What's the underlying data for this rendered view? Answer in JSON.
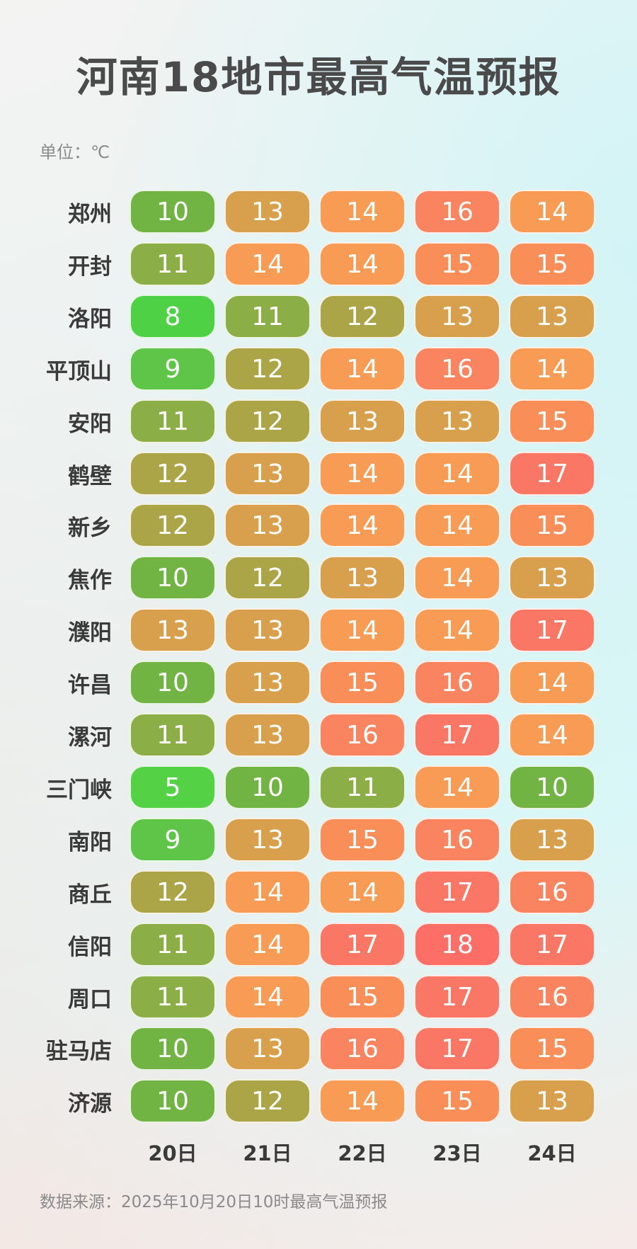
{
  "title": "河南18地市最高气温预报",
  "unit_label": "单位：℃",
  "source": "数据来源：2025年10月20日10时最高气温预报",
  "chart_data": {
    "type": "table",
    "title": "河南18地市最高气温预报",
    "unit": "℃",
    "columns": [
      "20日",
      "21日",
      "22日",
      "23日",
      "24日"
    ],
    "rows": [
      {
        "city": "郑州",
        "values": [
          10,
          13,
          14,
          16,
          14
        ]
      },
      {
        "city": "开封",
        "values": [
          11,
          14,
          14,
          15,
          15
        ]
      },
      {
        "city": "洛阳",
        "values": [
          8,
          11,
          12,
          13,
          13
        ]
      },
      {
        "city": "平顶山",
        "values": [
          9,
          12,
          14,
          16,
          14
        ]
      },
      {
        "city": "安阳",
        "values": [
          11,
          12,
          13,
          13,
          15
        ]
      },
      {
        "city": "鹤壁",
        "values": [
          12,
          13,
          14,
          14,
          17
        ]
      },
      {
        "city": "新乡",
        "values": [
          12,
          13,
          14,
          14,
          15
        ]
      },
      {
        "city": "焦作",
        "values": [
          10,
          12,
          13,
          14,
          13
        ]
      },
      {
        "city": "濮阳",
        "values": [
          13,
          13,
          14,
          14,
          17
        ]
      },
      {
        "city": "许昌",
        "values": [
          10,
          13,
          15,
          16,
          14
        ]
      },
      {
        "city": "漯河",
        "values": [
          11,
          13,
          16,
          17,
          14
        ]
      },
      {
        "city": "三门峡",
        "values": [
          5,
          10,
          11,
          14,
          10
        ]
      },
      {
        "city": "南阳",
        "values": [
          9,
          13,
          15,
          16,
          13
        ]
      },
      {
        "city": "商丘",
        "values": [
          12,
          14,
          14,
          17,
          16
        ]
      },
      {
        "city": "信阳",
        "values": [
          11,
          14,
          17,
          18,
          17
        ]
      },
      {
        "city": "周口",
        "values": [
          11,
          14,
          15,
          17,
          16
        ]
      },
      {
        "city": "驻马店",
        "values": [
          10,
          13,
          16,
          17,
          15
        ]
      },
      {
        "city": "济源",
        "values": [
          10,
          12,
          14,
          15,
          13
        ]
      }
    ],
    "color_scale": {
      "5": "#55d145",
      "8": "#4fd145",
      "9": "#5fc548",
      "10": "#72b444",
      "11": "#8bae47",
      "12": "#aca548",
      "13": "#d8a04c",
      "14": "#f79b55",
      "15": "#f98e58",
      "16": "#fb8460",
      "17": "#fb7765",
      "18": "#fc6e66"
    }
  }
}
